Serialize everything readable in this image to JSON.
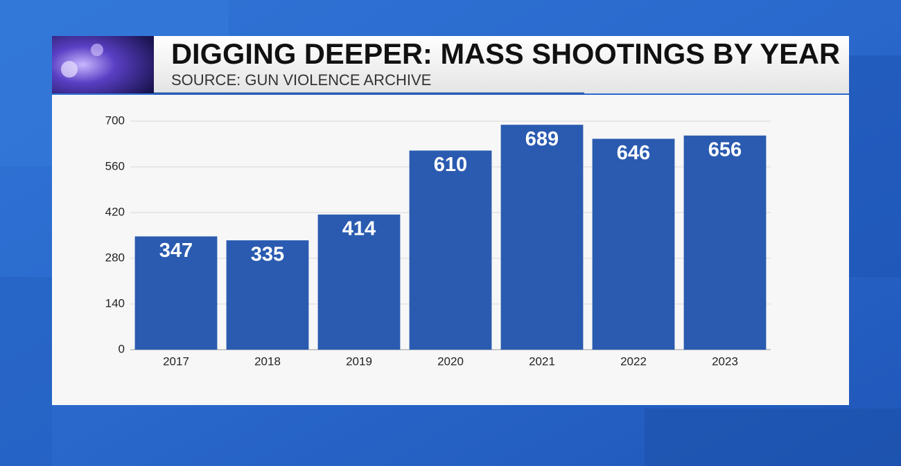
{
  "chart_data": {
    "type": "bar",
    "title": "DIGGING DEEPER: MASS SHOOTINGS BY YEAR",
    "subtitle": "SOURCE: GUN VIOLENCE ARCHIVE",
    "categories": [
      "2017",
      "2018",
      "2019",
      "2020",
      "2021",
      "2022",
      "2023"
    ],
    "values": [
      347,
      335,
      414,
      610,
      689,
      646,
      656
    ],
    "color": "#2a5bb0",
    "ylim": [
      0,
      700
    ],
    "yticks": [
      0,
      140,
      280,
      420,
      560,
      700
    ],
    "grid": true
  }
}
